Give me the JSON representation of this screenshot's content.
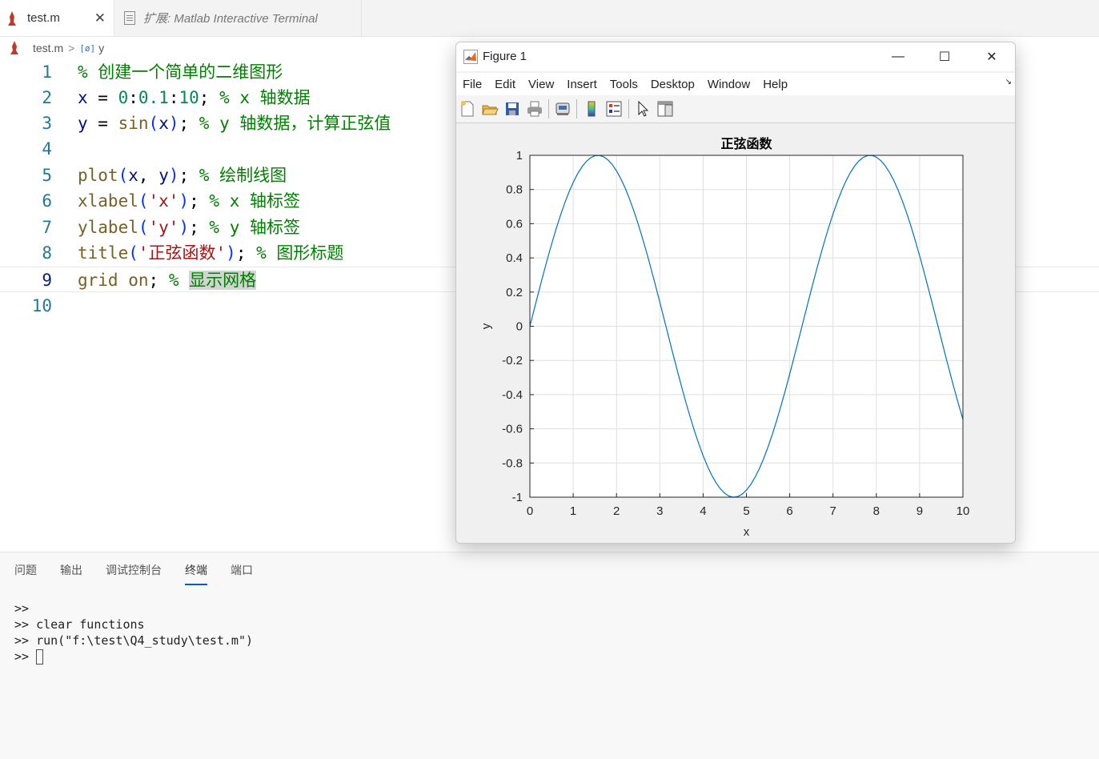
{
  "tabs": [
    {
      "label": "test.m",
      "close": "✕"
    },
    {
      "label": "扩展: Matlab Interactive Terminal"
    }
  ],
  "breadcrumb": {
    "file": "test.m",
    "sep": ">",
    "symbol_icon": "[ø]",
    "symbol": "y"
  },
  "editor": {
    "line_numbers": [
      "1",
      "2",
      "3",
      "4",
      "5",
      "6",
      "7",
      "8",
      "9",
      "10"
    ],
    "lines": {
      "l1": {
        "comment": "% 创建一个简单的二维图形"
      },
      "l2": {
        "var": "x",
        "eq": " = ",
        "n1": "0",
        "c1": ":",
        "n2": "0.1",
        "c2": ":",
        "n3": "10",
        "semi": "; ",
        "comment": "% x 轴数据"
      },
      "l3": {
        "var": "y",
        "eq": " = ",
        "fn": "sin",
        "p1": "(",
        "arg": "x",
        "p2": ")",
        "semi": "; ",
        "comment": "% y 轴数据，计算正弦值"
      },
      "l5": {
        "fn": "plot",
        "p1": "(",
        "a1": "x",
        "comma": ", ",
        "a2": "y",
        "p2": ")",
        "semi": "; ",
        "comment": "% 绘制线图"
      },
      "l6": {
        "fn": "xlabel",
        "p1": "(",
        "str": "'x'",
        "p2": ")",
        "semi": "; ",
        "comment": "% x 轴标签"
      },
      "l7": {
        "fn": "ylabel",
        "p1": "(",
        "str": "'y'",
        "p2": ")",
        "semi": "; ",
        "comment": "% y 轴标签"
      },
      "l8": {
        "fn": "title",
        "p1": "(",
        "str": "'正弦函数'",
        "p2": ")",
        "semi": "; ",
        "comment": "% 图形标题"
      },
      "l9": {
        "fn": "grid",
        "sp": " ",
        "arg": "on",
        "semi": "; ",
        "pct": "% ",
        "hl": "显示网格"
      }
    }
  },
  "figure": {
    "title": "Figure 1",
    "minimize": "—",
    "maximize": "☐",
    "close": "✕",
    "menu": [
      "File",
      "Edit",
      "View",
      "Insert",
      "Tools",
      "Desktop",
      "Window",
      "Help"
    ],
    "toolbar_icons": [
      "new-figure-icon",
      "open-file-icon",
      "save-icon",
      "print-icon",
      "link-icon",
      "colorbar-icon",
      "legend-icon",
      "pointer-icon",
      "property-editor-icon"
    ]
  },
  "chart_data": {
    "type": "line",
    "title": "正弦函数",
    "xlabel": "x",
    "ylabel": "y",
    "xlim": [
      0,
      10
    ],
    "ylim": [
      -1,
      1
    ],
    "xticks": [
      "0",
      "1",
      "2",
      "3",
      "4",
      "5",
      "6",
      "7",
      "8",
      "9",
      "10"
    ],
    "yticks": [
      "1",
      "0.8",
      "0.6",
      "0.4",
      "0.2",
      "0",
      "-0.2",
      "-0.4",
      "-0.6",
      "-0.8",
      "-1"
    ],
    "grid": true,
    "line_color": "#0072bd",
    "series": [
      {
        "function": "sin(x)",
        "x_start": 0,
        "x_step": 0.1,
        "x_end": 10
      }
    ]
  },
  "panel": {
    "tabs": [
      "问题",
      "输出",
      "调试控制台",
      "终端",
      "端口"
    ],
    "active_tab": "终端",
    "terminal": [
      ">>",
      ">> clear functions",
      ">> run(\"f:\\test\\Q4_study\\test.m\")",
      ">> "
    ]
  },
  "colors": {
    "comment": "#008000",
    "string": "#a31515",
    "function": "#795e26",
    "accent": "#005fb8"
  }
}
